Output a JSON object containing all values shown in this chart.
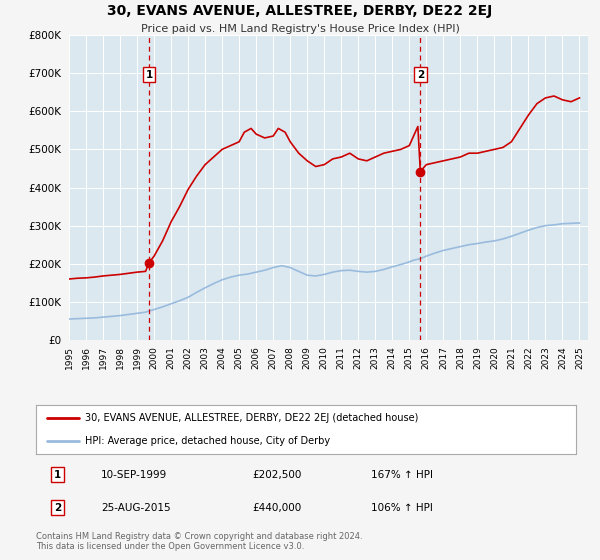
{
  "title": "30, EVANS AVENUE, ALLESTREE, DERBY, DE22 2EJ",
  "subtitle": "Price paid vs. HM Land Registry's House Price Index (HPI)",
  "background_color": "#f5f5f5",
  "plot_bg_color": "#dce8f0",
  "grid_color": "#ffffff",
  "ylim": [
    0,
    800000
  ],
  "yticks": [
    0,
    100000,
    200000,
    300000,
    400000,
    500000,
    600000,
    700000,
    800000
  ],
  "xmin": 1995.0,
  "xmax": 2025.5,
  "xticks": [
    1995,
    1996,
    1997,
    1998,
    1999,
    2000,
    2001,
    2002,
    2003,
    2004,
    2005,
    2006,
    2007,
    2008,
    2009,
    2010,
    2011,
    2012,
    2013,
    2014,
    2015,
    2016,
    2017,
    2018,
    2019,
    2020,
    2021,
    2022,
    2023,
    2024,
    2025
  ],
  "property_color": "#cc0000",
  "hpi_color": "#99bbdd",
  "marker_color": "#cc0000",
  "sale1_x": 1999.7,
  "sale1_y": 202500,
  "sale2_x": 2015.65,
  "sale2_y": 440000,
  "vline1_x": 1999.7,
  "vline2_x": 2015.65,
  "vline_color": "#cc0000",
  "legend_label1": "30, EVANS AVENUE, ALLESTREE, DERBY, DE22 2EJ (detached house)",
  "legend_label2": "HPI: Average price, detached house, City of Derby",
  "note1_label": "1",
  "note1_date": "10-SEP-1999",
  "note1_price": "£202,500",
  "note1_hpi": "167% ↑ HPI",
  "note2_label": "2",
  "note2_date": "25-AUG-2015",
  "note2_price": "£440,000",
  "note2_hpi": "106% ↑ HPI",
  "footer": "Contains HM Land Registry data © Crown copyright and database right 2024.\nThis data is licensed under the Open Government Licence v3.0.",
  "property_data": [
    [
      1995.0,
      160000
    ],
    [
      1995.5,
      162000
    ],
    [
      1996.0,
      163000
    ],
    [
      1996.5,
      165000
    ],
    [
      1997.0,
      168000
    ],
    [
      1997.5,
      170000
    ],
    [
      1998.0,
      172000
    ],
    [
      1998.5,
      175000
    ],
    [
      1999.0,
      178000
    ],
    [
      1999.5,
      180000
    ],
    [
      1999.7,
      202500
    ],
    [
      2000.0,
      220000
    ],
    [
      2000.5,
      260000
    ],
    [
      2001.0,
      310000
    ],
    [
      2001.5,
      350000
    ],
    [
      2002.0,
      395000
    ],
    [
      2002.5,
      430000
    ],
    [
      2003.0,
      460000
    ],
    [
      2003.5,
      480000
    ],
    [
      2004.0,
      500000
    ],
    [
      2004.5,
      510000
    ],
    [
      2005.0,
      520000
    ],
    [
      2005.3,
      545000
    ],
    [
      2005.7,
      555000
    ],
    [
      2006.0,
      540000
    ],
    [
      2006.5,
      530000
    ],
    [
      2007.0,
      535000
    ],
    [
      2007.3,
      555000
    ],
    [
      2007.7,
      545000
    ],
    [
      2008.0,
      520000
    ],
    [
      2008.5,
      490000
    ],
    [
      2009.0,
      470000
    ],
    [
      2009.5,
      455000
    ],
    [
      2010.0,
      460000
    ],
    [
      2010.5,
      475000
    ],
    [
      2011.0,
      480000
    ],
    [
      2011.5,
      490000
    ],
    [
      2012.0,
      475000
    ],
    [
      2012.5,
      470000
    ],
    [
      2013.0,
      480000
    ],
    [
      2013.5,
      490000
    ],
    [
      2014.0,
      495000
    ],
    [
      2014.5,
      500000
    ],
    [
      2015.0,
      510000
    ],
    [
      2015.3,
      540000
    ],
    [
      2015.5,
      560000
    ],
    [
      2015.65,
      440000
    ],
    [
      2015.8,
      450000
    ],
    [
      2016.0,
      460000
    ],
    [
      2016.5,
      465000
    ],
    [
      2017.0,
      470000
    ],
    [
      2017.5,
      475000
    ],
    [
      2018.0,
      480000
    ],
    [
      2018.5,
      490000
    ],
    [
      2019.0,
      490000
    ],
    [
      2019.5,
      495000
    ],
    [
      2020.0,
      500000
    ],
    [
      2020.5,
      505000
    ],
    [
      2021.0,
      520000
    ],
    [
      2021.5,
      555000
    ],
    [
      2022.0,
      590000
    ],
    [
      2022.5,
      620000
    ],
    [
      2023.0,
      635000
    ],
    [
      2023.5,
      640000
    ],
    [
      2024.0,
      630000
    ],
    [
      2024.5,
      625000
    ],
    [
      2025.0,
      635000
    ]
  ],
  "hpi_data": [
    [
      1995.0,
      55000
    ],
    [
      1995.5,
      56000
    ],
    [
      1996.0,
      57000
    ],
    [
      1996.5,
      58000
    ],
    [
      1997.0,
      60000
    ],
    [
      1997.5,
      62000
    ],
    [
      1998.0,
      64000
    ],
    [
      1998.5,
      67000
    ],
    [
      1999.0,
      70000
    ],
    [
      1999.5,
      73000
    ],
    [
      1999.7,
      75800
    ],
    [
      2000.0,
      80000
    ],
    [
      2000.5,
      87000
    ],
    [
      2001.0,
      95000
    ],
    [
      2001.5,
      103000
    ],
    [
      2002.0,
      112000
    ],
    [
      2002.5,
      125000
    ],
    [
      2003.0,
      137000
    ],
    [
      2003.5,
      148000
    ],
    [
      2004.0,
      158000
    ],
    [
      2004.5,
      165000
    ],
    [
      2005.0,
      170000
    ],
    [
      2005.5,
      173000
    ],
    [
      2006.0,
      178000
    ],
    [
      2006.5,
      183000
    ],
    [
      2007.0,
      190000
    ],
    [
      2007.5,
      195000
    ],
    [
      2008.0,
      190000
    ],
    [
      2008.5,
      180000
    ],
    [
      2009.0,
      170000
    ],
    [
      2009.5,
      168000
    ],
    [
      2010.0,
      172000
    ],
    [
      2010.5,
      178000
    ],
    [
      2011.0,
      182000
    ],
    [
      2011.5,
      183000
    ],
    [
      2012.0,
      180000
    ],
    [
      2012.5,
      178000
    ],
    [
      2013.0,
      180000
    ],
    [
      2013.5,
      185000
    ],
    [
      2014.0,
      192000
    ],
    [
      2014.5,
      198000
    ],
    [
      2015.0,
      205000
    ],
    [
      2015.3,
      210000
    ],
    [
      2015.65,
      213333
    ],
    [
      2016.0,
      220000
    ],
    [
      2016.5,
      228000
    ],
    [
      2017.0,
      235000
    ],
    [
      2017.5,
      240000
    ],
    [
      2018.0,
      245000
    ],
    [
      2018.5,
      250000
    ],
    [
      2019.0,
      253000
    ],
    [
      2019.5,
      257000
    ],
    [
      2020.0,
      260000
    ],
    [
      2020.5,
      265000
    ],
    [
      2021.0,
      272000
    ],
    [
      2021.5,
      280000
    ],
    [
      2022.0,
      288000
    ],
    [
      2022.5,
      295000
    ],
    [
      2023.0,
      300000
    ],
    [
      2023.5,
      302000
    ],
    [
      2024.0,
      305000
    ],
    [
      2024.5,
      306000
    ],
    [
      2025.0,
      307000
    ]
  ]
}
